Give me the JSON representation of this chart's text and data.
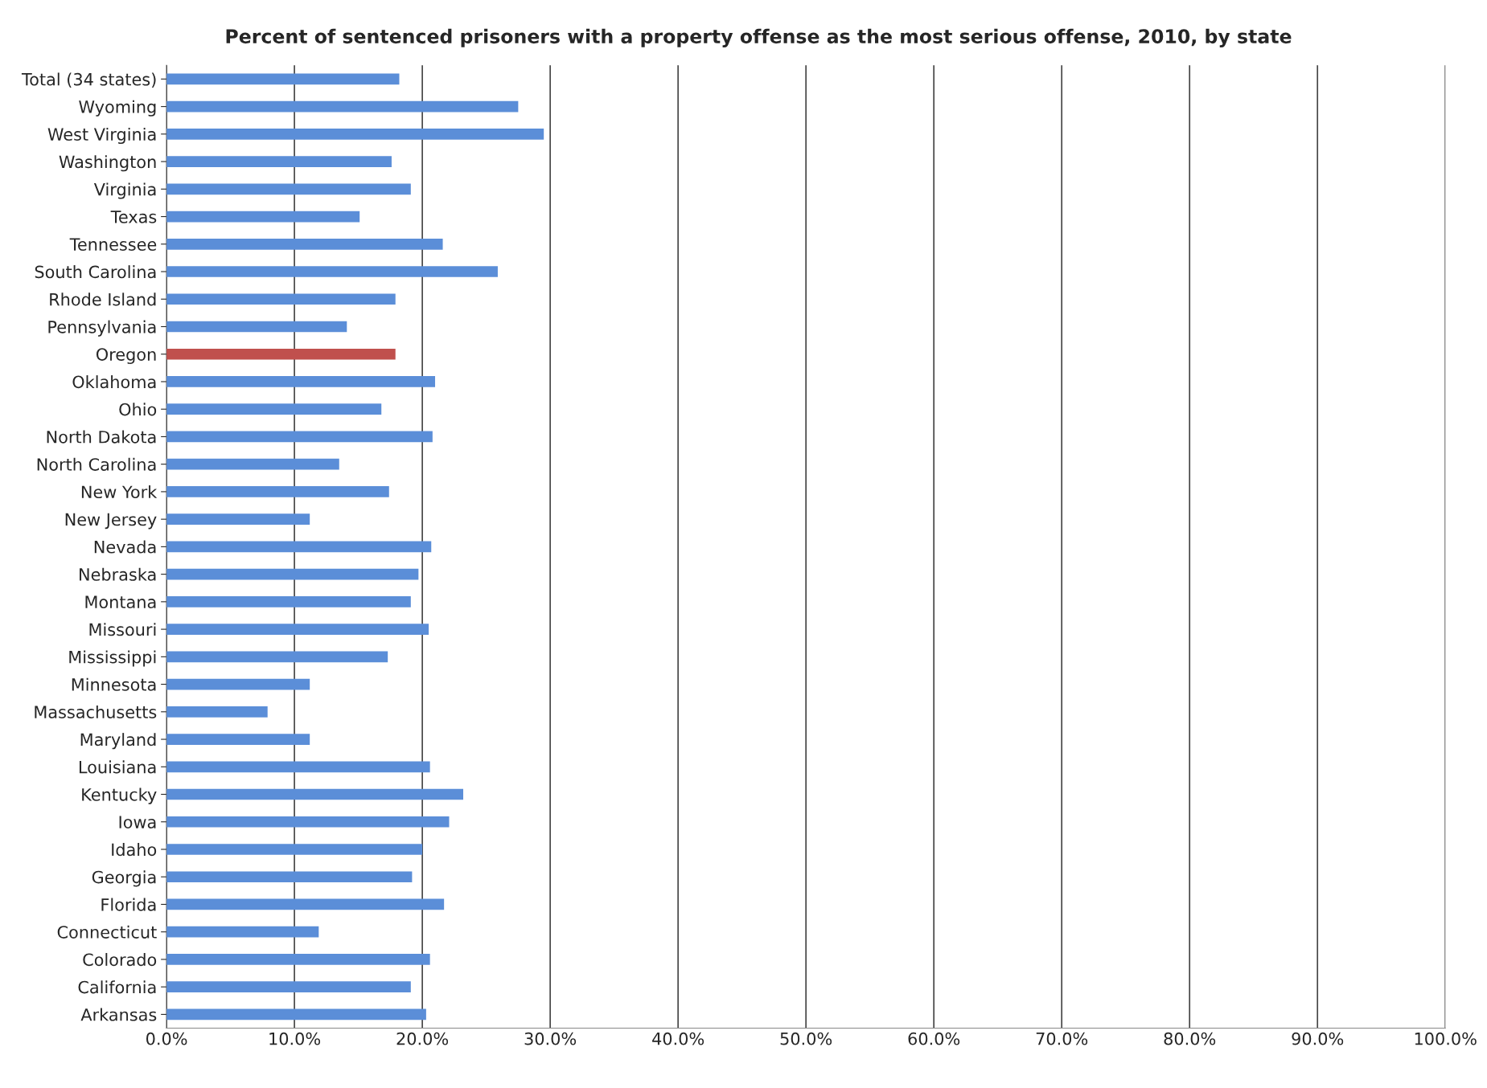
{
  "chart_data": {
    "type": "bar",
    "orientation": "horizontal",
    "title": "Percent of sentenced prisoners with a property offense as the most serious offense, 2010, by state",
    "categories": [
      "Total (34 states)",
      "Wyoming",
      "West Virginia",
      "Washington",
      "Virginia",
      "Texas",
      "Tennessee",
      "South Carolina",
      "Rhode Island",
      "Pennsylvania",
      "Oregon",
      "Oklahoma",
      "Ohio",
      "North Dakota",
      "North Carolina",
      "New York",
      "New Jersey",
      "Nevada",
      "Nebraska",
      "Montana",
      "Missouri",
      "Mississippi",
      "Minnesota",
      "Massachusetts",
      "Maryland",
      "Louisiana",
      "Kentucky",
      "Iowa",
      "Idaho",
      "Georgia",
      "Florida",
      "Connecticut",
      "Colorado",
      "California",
      "Arkansas"
    ],
    "values": [
      18.2,
      27.5,
      29.5,
      17.6,
      19.1,
      15.1,
      21.6,
      25.9,
      17.9,
      14.1,
      17.9,
      21.0,
      16.8,
      20.8,
      13.5,
      17.4,
      11.2,
      20.7,
      19.7,
      19.1,
      20.5,
      17.3,
      11.2,
      7.9,
      11.2,
      20.6,
      23.2,
      22.1,
      20.0,
      19.2,
      21.7,
      11.9,
      20.6,
      19.1,
      20.3
    ],
    "colors": [
      "#5b8ed8",
      "#5b8ed8",
      "#5b8ed8",
      "#5b8ed8",
      "#5b8ed8",
      "#5b8ed8",
      "#5b8ed8",
      "#5b8ed8",
      "#5b8ed8",
      "#5b8ed8",
      "#c0504d",
      "#5b8ed8",
      "#5b8ed8",
      "#5b8ed8",
      "#5b8ed8",
      "#5b8ed8",
      "#5b8ed8",
      "#5b8ed8",
      "#5b8ed8",
      "#5b8ed8",
      "#5b8ed8",
      "#5b8ed8",
      "#5b8ed8",
      "#5b8ed8",
      "#5b8ed8",
      "#5b8ed8",
      "#5b8ed8",
      "#5b8ed8",
      "#5b8ed8",
      "#5b8ed8",
      "#5b8ed8",
      "#5b8ed8",
      "#5b8ed8",
      "#5b8ed8",
      "#5b8ed8"
    ],
    "xlim": [
      0,
      100
    ],
    "xticks": [
      {
        "value": 0,
        "label": "0.0%"
      },
      {
        "value": 10,
        "label": "10.0%"
      },
      {
        "value": 20,
        "label": "20.0%"
      },
      {
        "value": 30,
        "label": "30.0%"
      },
      {
        "value": 40,
        "label": "40.0%"
      },
      {
        "value": 50,
        "label": "50.0%"
      },
      {
        "value": 60,
        "label": "60.0%"
      },
      {
        "value": 70,
        "label": "70.0%"
      },
      {
        "value": 80,
        "label": "80.0%"
      },
      {
        "value": 90,
        "label": "90.0%"
      },
      {
        "value": 100,
        "label": "100.0%"
      }
    ],
    "grid": "x",
    "legend": false
  }
}
